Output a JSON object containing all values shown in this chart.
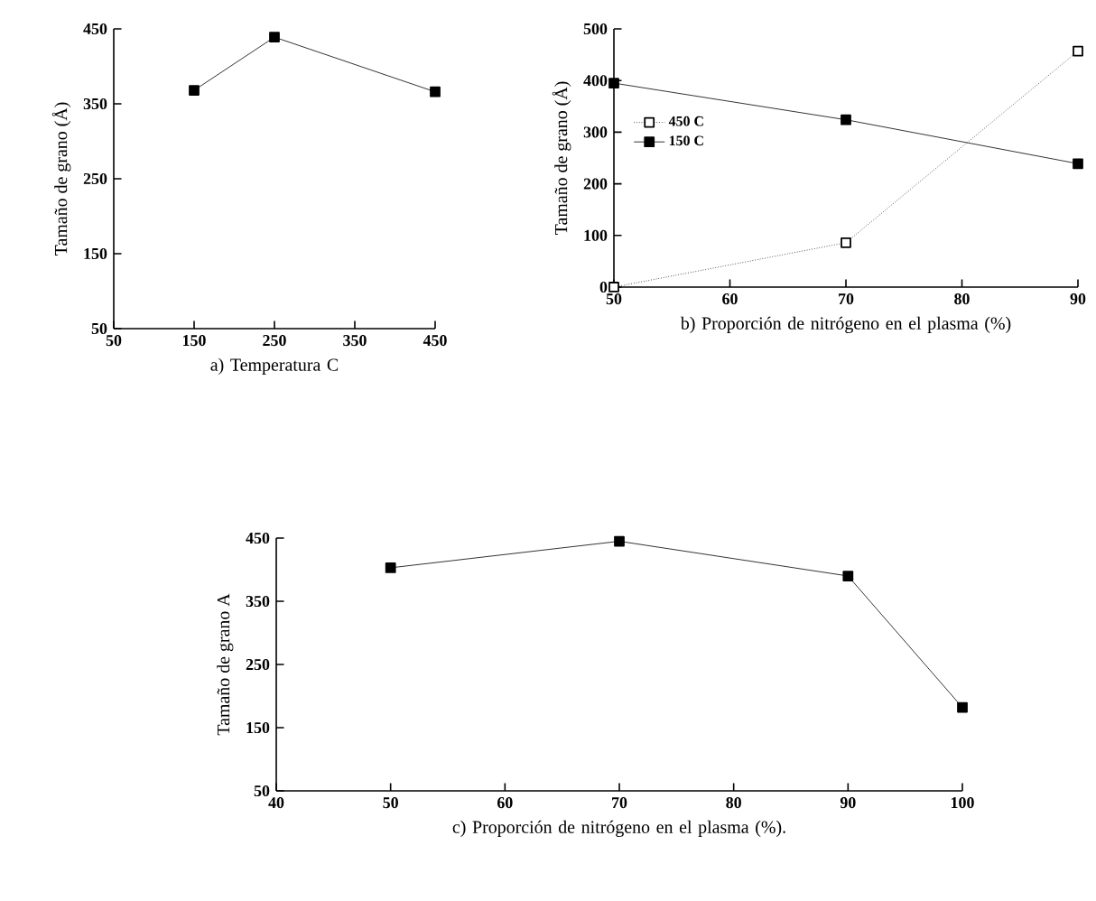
{
  "chart_data": [
    {
      "type": "line",
      "xlabel": "a)    Temperatura  C",
      "ylabel": "Tamaño de grano (Å)",
      "xlim": [
        50,
        450
      ],
      "xticks": [
        50,
        150,
        250,
        350,
        450
      ],
      "ylim": [
        50,
        450
      ],
      "yticks": [
        50,
        150,
        250,
        350,
        450
      ],
      "marker": "square",
      "line_style": "solid",
      "grid": false,
      "legend": false,
      "x": [
        150,
        250,
        450
      ],
      "series": [
        {
          "color": "#000000",
          "values": [
            368,
            439,
            366
          ]
        }
      ]
    },
    {
      "type": "line",
      "xlabel": "b)  Proporción de nitrógeno en el plasma  (%)",
      "ylabel": "Tamaño de grano  (Å)",
      "xlim": [
        50,
        90
      ],
      "xticks": [
        50,
        60,
        70,
        80,
        90
      ],
      "ylim": [
        0,
        500
      ],
      "yticks": [
        0,
        100,
        200,
        300,
        400,
        500
      ],
      "marker": "square",
      "grid": false,
      "legend": "left",
      "x": [
        50,
        70,
        90
      ],
      "series": [
        {
          "name": "450 C",
          "color": "#000000",
          "line_style": "dotted",
          "values": [
            0,
            86,
            457
          ]
        },
        {
          "name": "150 C",
          "color": "#000000",
          "line_style": "solid",
          "values": [
            395,
            324,
            239
          ]
        }
      ]
    },
    {
      "type": "line",
      "xlabel": "c)      Proporción de nitrógeno en el plasma (%).",
      "ylabel": "Tamaño de grano A",
      "xlim": [
        40,
        100
      ],
      "xticks": [
        40,
        50,
        60,
        70,
        80,
        90,
        100
      ],
      "ylim": [
        50,
        450
      ],
      "yticks": [
        50,
        150,
        250,
        350,
        450
      ],
      "marker": "square",
      "line_style": "solid",
      "grid": false,
      "legend": false,
      "x": [
        50,
        70,
        90,
        100
      ],
      "series": [
        {
          "color": "#000000",
          "values": [
            403,
            445,
            390,
            182
          ]
        }
      ]
    }
  ]
}
